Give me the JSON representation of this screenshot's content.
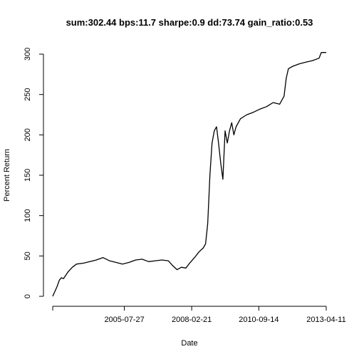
{
  "chart_data": {
    "type": "line",
    "title": "sum:302.44 bps:11.7 sharpe:0.9 dd:73.74 gain_ratio:0.53",
    "xlabel": "Date",
    "ylabel": "Percent Return",
    "xlim": [
      "2002-11-01",
      "2013-04-11"
    ],
    "ylim": [
      0,
      305
    ],
    "x_ticks": [
      "2005-07-27",
      "2008-02-21",
      "2010-09-14",
      "2013-04-11"
    ],
    "y_ticks": [
      0,
      50,
      100,
      150,
      200,
      250,
      300
    ],
    "grid": false,
    "series": [
      {
        "color": "#000000",
        "x": [
          "2002-11-01",
          "2002-12-01",
          "2003-01-01",
          "2003-02-01",
          "2003-03-01",
          "2003-04-01",
          "2003-06-01",
          "2003-08-01",
          "2003-10-01",
          "2004-01-01",
          "2004-04-01",
          "2004-07-01",
          "2004-10-01",
          "2005-01-01",
          "2005-04-01",
          "2005-07-01",
          "2005-10-01",
          "2006-01-01",
          "2006-04-01",
          "2006-07-01",
          "2006-10-01",
          "2007-01-01",
          "2007-04-01",
          "2007-06-01",
          "2007-08-01",
          "2007-10-01",
          "2007-12-01",
          "2008-02-01",
          "2008-04-01",
          "2008-06-01",
          "2008-08-01",
          "2008-09-01",
          "2008-10-01",
          "2008-11-01",
          "2008-12-01",
          "2009-01-01",
          "2009-02-01",
          "2009-03-01",
          "2009-04-01",
          "2009-05-01",
          "2009-06-01",
          "2009-07-01",
          "2009-08-01",
          "2009-09-01",
          "2009-10-01",
          "2009-11-01",
          "2010-01-01",
          "2010-04-01",
          "2010-07-01",
          "2010-10-01",
          "2011-01-01",
          "2011-04-01",
          "2011-07-01",
          "2011-09-01",
          "2011-10-01",
          "2011-11-01",
          "2012-01-01",
          "2012-04-01",
          "2012-07-01",
          "2012-10-01",
          "2013-01-01",
          "2013-02-01",
          "2013-04-11"
        ],
        "values": [
          0,
          6,
          12,
          20,
          23,
          22,
          30,
          36,
          40,
          41,
          43,
          45,
          48,
          44,
          42,
          40,
          42,
          45,
          46,
          43,
          44,
          45,
          44,
          38,
          33,
          36,
          35,
          42,
          48,
          55,
          60,
          65,
          90,
          150,
          190,
          205,
          210,
          190,
          165,
          145,
          205,
          190,
          205,
          215,
          200,
          210,
          220,
          225,
          228,
          232,
          235,
          240,
          238,
          248,
          270,
          282,
          285,
          288,
          290,
          292,
          295,
          302,
          302
        ]
      }
    ]
  }
}
